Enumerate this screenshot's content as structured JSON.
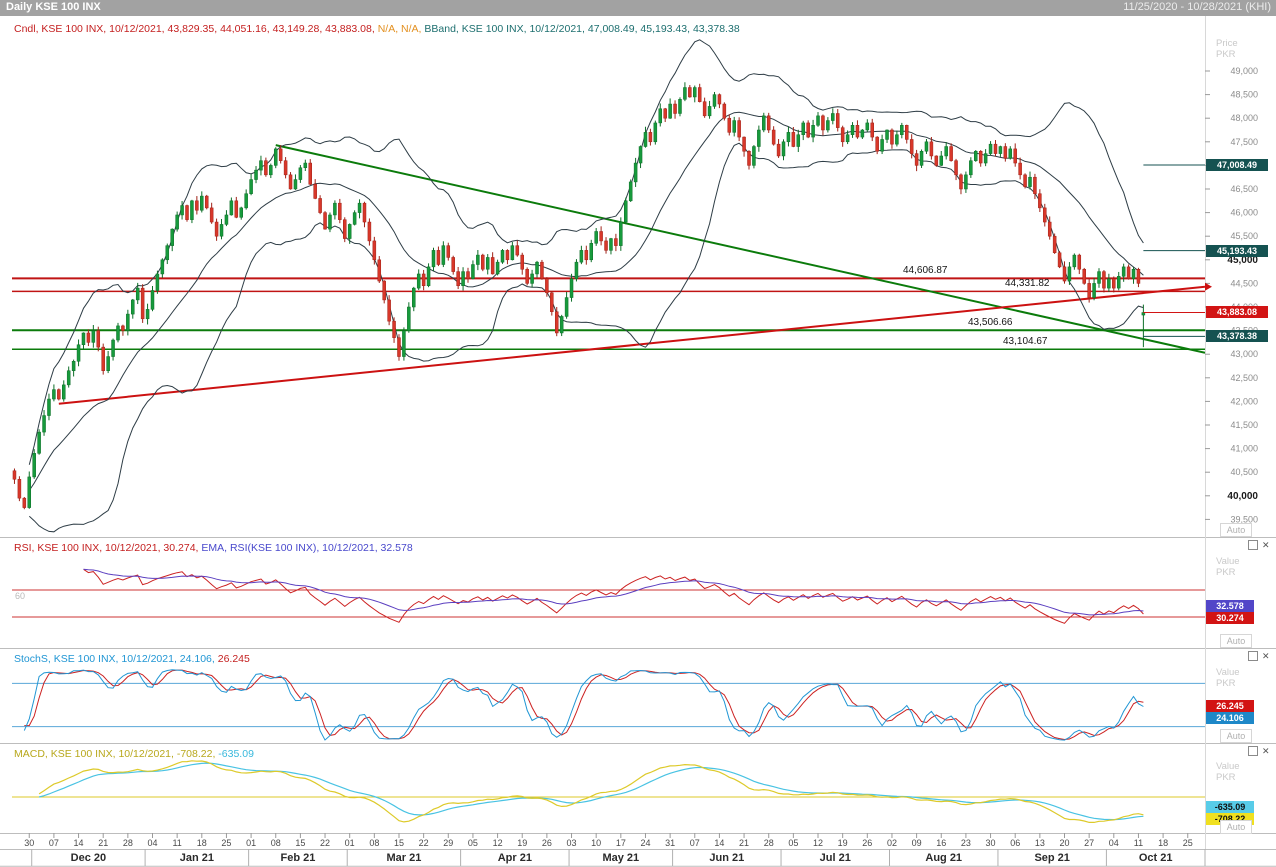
{
  "titlebar": {
    "title": "Daily KSE 100 INX",
    "date_range": "11/25/2020 - 10/28/2021 (KHI)"
  },
  "price_pane": {
    "legend": {
      "cndl": "Cndl, KSE 100 INX, 10/12/2021, 43,829.35, 44,051.16, 43,149.28, 43,883.08,",
      "na": "N/A, N/A,",
      "bband": "BBand, KSE 100 INX, 10/12/2021, 47,008.49, 45,193.43, 43,378.38"
    },
    "axis_unit": {
      "line1": "Price",
      "line2": "PKR"
    },
    "auto": "Auto",
    "badges": [
      {
        "text": "47,008.49"
      },
      {
        "text": "45,193.43"
      },
      {
        "text": "43,883.08"
      },
      {
        "text": "43,378.38"
      }
    ],
    "level_labels": [
      {
        "text": "44,606.87"
      },
      {
        "text": "44,331.82"
      },
      {
        "text": "43,506.66"
      },
      {
        "text": "43,104.67"
      }
    ]
  },
  "rsi_pane": {
    "legend": {
      "rsi": "RSI, KSE 100 INX, 10/12/2021, 30.274,",
      "ema": "EMA, RSI(KSE 100 INX), 10/12/2021, 32.578"
    },
    "axis_unit": {
      "line1": "Value",
      "line2": "PKR"
    },
    "auto": "Auto",
    "level_label": "60",
    "badges": [
      {
        "text": "32.578"
      },
      {
        "text": "30.274"
      }
    ]
  },
  "stoch_pane": {
    "legend": {
      "main": "StochS, KSE 100 INX, 10/12/2021, 24.106,",
      "d": "26.245"
    },
    "axis_unit": {
      "line1": "Value",
      "line2": "PKR"
    },
    "auto": "Auto",
    "badges": [
      {
        "text": "26.245"
      },
      {
        "text": "24.106"
      }
    ]
  },
  "macd_pane": {
    "legend": {
      "main": "MACD, KSE 100 INX, 10/12/2021, -708.22,",
      "signal": "-635.09"
    },
    "axis_unit": {
      "line1": "Value",
      "line2": "PKR"
    },
    "auto": "Auto",
    "badges": [
      {
        "text": "-635.09"
      },
      {
        "text": "-708.22"
      }
    ]
  },
  "chart_data": {
    "type": "candlestick",
    "symbol": "KSE 100 INX",
    "interval": "Daily",
    "visible_range": "11/25/2020 - 10/28/2021",
    "price_axis": {
      "min": 39500,
      "max": 49000,
      "step": 500,
      "bold_ticks": [
        40000,
        45000
      ],
      "unit": "PKR"
    },
    "last_candle": {
      "date": "10/12/2021",
      "open": 43829.35,
      "high": 44051.16,
      "low": 43149.28,
      "close": 43883.08
    },
    "bollinger": {
      "period": 20,
      "stdev": 2,
      "last_upper": 47008.49,
      "last_middle": 45193.43,
      "last_lower": 43378.38
    },
    "levels": [
      {
        "value": 44606.87,
        "color": "#c01414",
        "width": 2
      },
      {
        "value": 44331.82,
        "color": "#c01414",
        "width": 1.5
      },
      {
        "value": 43506.66,
        "color": "#0b7b0b",
        "width": 2
      },
      {
        "value": 43104.67,
        "color": "#0b7b0b",
        "width": 1.5
      }
    ],
    "trendlines": [
      {
        "color": "#0b7b0b",
        "width": 2,
        "from": {
          "i": 53,
          "price": 47430
        },
        "to": {
          "i": 242,
          "price": 43030
        }
      },
      {
        "color": "#cc1111",
        "width": 2,
        "from": {
          "i": 9,
          "price": 41950
        },
        "to": {
          "i": 242,
          "price": 44430
        }
      }
    ],
    "closes": [
      40350,
      39950,
      39750,
      40400,
      40900,
      41350,
      41700,
      42050,
      42250,
      42050,
      42350,
      42650,
      42850,
      43200,
      43450,
      43250,
      43500,
      43150,
      42650,
      42950,
      43300,
      43600,
      43500,
      43850,
      44150,
      44400,
      43750,
      43950,
      44350,
      44700,
      45000,
      45300,
      45650,
      45950,
      46150,
      45850,
      46250,
      46050,
      46350,
      46100,
      45800,
      45500,
      45750,
      45950,
      46250,
      45900,
      46100,
      46400,
      46700,
      46900,
      47100,
      46800,
      47000,
      47350,
      47100,
      46800,
      46500,
      46700,
      46950,
      47050,
      46600,
      46300,
      46000,
      45650,
      45950,
      46200,
      45850,
      45450,
      45750,
      46000,
      46200,
      45800,
      45400,
      45000,
      44550,
      44150,
      43700,
      43350,
      42950,
      43500,
      44000,
      44400,
      44700,
      44450,
      44850,
      45200,
      44900,
      45300,
      45050,
      44750,
      44450,
      44750,
      44600,
      44900,
      45100,
      44800,
      45050,
      44700,
      44950,
      45200,
      45000,
      45300,
      45100,
      44800,
      44500,
      44700,
      44950,
      44600,
      44300,
      43900,
      43450,
      43800,
      44200,
      44600,
      44950,
      45200,
      45000,
      45350,
      45600,
      45400,
      45200,
      45450,
      45300,
      45800,
      46250,
      46650,
      47050,
      47400,
      47700,
      47500,
      47900,
      48200,
      48000,
      48300,
      48100,
      48400,
      48650,
      48450,
      48650,
      48350,
      48050,
      48250,
      48500,
      48300,
      48000,
      47700,
      47950,
      47600,
      47300,
      47000,
      47400,
      47750,
      48050,
      47750,
      47450,
      47200,
      47500,
      47700,
      47400,
      47650,
      47900,
      47600,
      47850,
      48050,
      47750,
      47950,
      48100,
      47800,
      47500,
      47650,
      47850,
      47600,
      47750,
      47900,
      47600,
      47300,
      47550,
      47750,
      47450,
      47650,
      47850,
      47550,
      47250,
      47000,
      47300,
      47500,
      47200,
      47000,
      47200,
      47400,
      47100,
      46800,
      46500,
      46800,
      47100,
      47300,
      47050,
      47250,
      47450,
      47250,
      47400,
      47150,
      47350,
      47050,
      46800,
      46550,
      46750,
      46400,
      46100,
      45800,
      45500,
      45150,
      44850,
      44550,
      44850,
      45100,
      44800,
      44500,
      44200,
      44500,
      44750,
      44400,
      44600,
      44400,
      44650,
      44850,
      44600,
      44800,
      44500,
      43883.08
    ],
    "indicators": {
      "rsi": {
        "period": 14,
        "last": 30.274,
        "ema_period": 14,
        "ema_last": 32.578,
        "levels": [
          60,
          30
        ]
      },
      "stoch": {
        "k_last": 24.106,
        "d_last": 26.245,
        "levels": [
          80,
          20
        ]
      },
      "macd": {
        "fast": 12,
        "slow": 26,
        "signal": 9,
        "last": -708.22,
        "signal_last": -635.09
      }
    },
    "x_axis": {
      "slots": 242,
      "week_ticks": [
        {
          "i": 3,
          "label": "30"
        },
        {
          "i": 8,
          "label": "07"
        },
        {
          "i": 13,
          "label": "14"
        },
        {
          "i": 18,
          "label": "21"
        },
        {
          "i": 23,
          "label": "28"
        },
        {
          "i": 28,
          "label": "04"
        },
        {
          "i": 33,
          "label": "11"
        },
        {
          "i": 38,
          "label": "18"
        },
        {
          "i": 43,
          "label": "25"
        },
        {
          "i": 48,
          "label": "01"
        },
        {
          "i": 53,
          "label": "08"
        },
        {
          "i": 58,
          "label": "15"
        },
        {
          "i": 63,
          "label": "22"
        },
        {
          "i": 68,
          "label": "01"
        },
        {
          "i": 73,
          "label": "08"
        },
        {
          "i": 78,
          "label": "15"
        },
        {
          "i": 83,
          "label": "22"
        },
        {
          "i": 88,
          "label": "29"
        },
        {
          "i": 93,
          "label": "05"
        },
        {
          "i": 98,
          "label": "12"
        },
        {
          "i": 103,
          "label": "19"
        },
        {
          "i": 108,
          "label": "26"
        },
        {
          "i": 113,
          "label": "03"
        },
        {
          "i": 118,
          "label": "10"
        },
        {
          "i": 123,
          "label": "17"
        },
        {
          "i": 128,
          "label": "24"
        },
        {
          "i": 133,
          "label": "31"
        },
        {
          "i": 138,
          "label": "07"
        },
        {
          "i": 143,
          "label": "14"
        },
        {
          "i": 148,
          "label": "21"
        },
        {
          "i": 153,
          "label": "28"
        },
        {
          "i": 158,
          "label": "05"
        },
        {
          "i": 163,
          "label": "12"
        },
        {
          "i": 168,
          "label": "19"
        },
        {
          "i": 173,
          "label": "26"
        },
        {
          "i": 178,
          "label": "02"
        },
        {
          "i": 183,
          "label": "09"
        },
        {
          "i": 188,
          "label": "16"
        },
        {
          "i": 193,
          "label": "23"
        },
        {
          "i": 198,
          "label": "30"
        },
        {
          "i": 203,
          "label": "06"
        },
        {
          "i": 208,
          "label": "13"
        },
        {
          "i": 213,
          "label": "20"
        },
        {
          "i": 218,
          "label": "27"
        },
        {
          "i": 223,
          "label": "04"
        },
        {
          "i": 228,
          "label": "11"
        },
        {
          "i": 233,
          "label": "18"
        },
        {
          "i": 238,
          "label": "25"
        }
      ],
      "months": [
        {
          "label": "Dec 20",
          "start": 4,
          "end": 27
        },
        {
          "label": "Jan 21",
          "start": 27,
          "end": 48
        },
        {
          "label": "Feb 21",
          "start": 48,
          "end": 68
        },
        {
          "label": "Mar 21",
          "start": 68,
          "end": 91
        },
        {
          "label": "Apr 21",
          "start": 91,
          "end": 113
        },
        {
          "label": "May 21",
          "start": 113,
          "end": 134
        },
        {
          "label": "Jun 21",
          "start": 134,
          "end": 156
        },
        {
          "label": "Jul 21",
          "start": 156,
          "end": 178
        },
        {
          "label": "Aug 21",
          "start": 178,
          "end": 200
        },
        {
          "label": "Sep 21",
          "start": 200,
          "end": 222
        },
        {
          "label": "Oct 21",
          "start": 222,
          "end": 242
        }
      ]
    }
  }
}
